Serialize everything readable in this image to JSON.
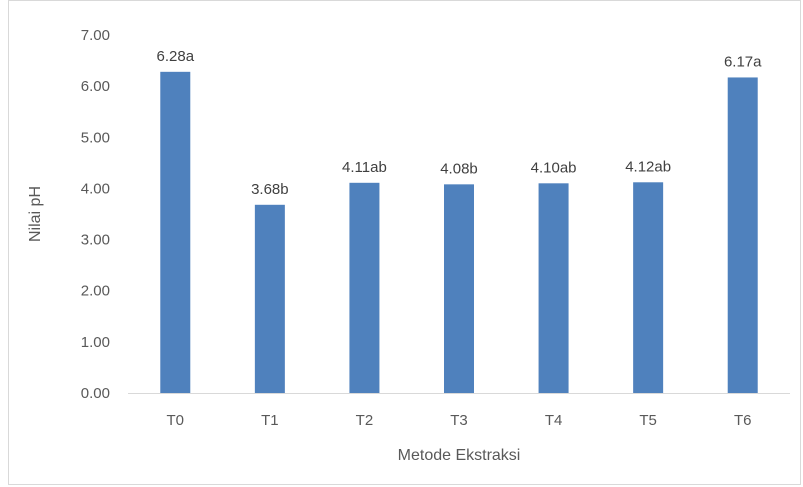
{
  "chart_data": {
    "type": "bar",
    "categories": [
      "T0",
      "T1",
      "T2",
      "T3",
      "T4",
      "T5",
      "T6"
    ],
    "values": [
      6.28,
      3.68,
      4.11,
      4.08,
      4.1,
      4.12,
      6.17
    ],
    "data_labels": [
      "6.28a",
      "3.68b",
      "4.11ab",
      "4.08b",
      "4.10ab",
      "4.12ab",
      "6.17a"
    ],
    "y_ticks": [
      "0.00",
      "1.00",
      "2.00",
      "3.00",
      "4.00",
      "5.00",
      "6.00",
      "7.00"
    ],
    "xlabel": "Metode Ekstraksi",
    "ylabel": "Nilai pH",
    "ylim": [
      0,
      7
    ],
    "grid": false,
    "legend": "none",
    "bar_color": "#4f81bd",
    "axis_color": "#d9d9d9"
  }
}
